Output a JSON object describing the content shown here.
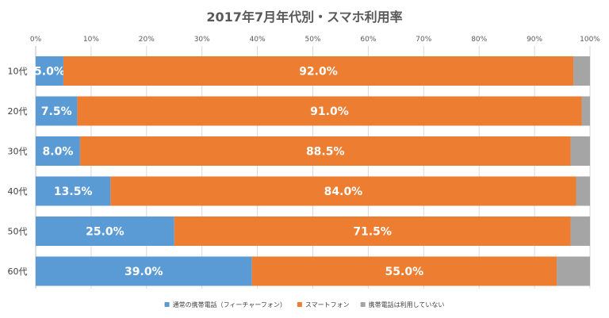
{
  "chart_data": {
    "type": "bar",
    "orientation": "horizontal",
    "stacked": true,
    "title": "2017年7月年代別・スマホ利用率",
    "categories": [
      "10代",
      "20代",
      "30代",
      "40代",
      "50代",
      "60代"
    ],
    "x_ticks": [
      "0%",
      "10%",
      "20%",
      "30%",
      "40%",
      "50%",
      "60%",
      "70%",
      "80%",
      "90%",
      "100%"
    ],
    "xlim": [
      0,
      100
    ],
    "grid": true,
    "legend_position": "bottom",
    "series": [
      {
        "name": "通常の携帯電話（フィーチャーフォン）",
        "color": "#5b9bd5",
        "values": [
          5.0,
          7.5,
          8.0,
          13.5,
          25.0,
          39.0
        ],
        "labels": [
          "5.0%",
          "7.5%",
          "8.0%",
          "13.5%",
          "25.0%",
          "39.0%"
        ]
      },
      {
        "name": "スマートフォン",
        "color": "#ed7d31",
        "values": [
          92.0,
          91.0,
          88.5,
          84.0,
          71.5,
          55.0
        ],
        "labels": [
          "92.0%",
          "91.0%",
          "88.5%",
          "84.0%",
          "71.5%",
          "55.0%"
        ]
      },
      {
        "name": "携帯電話は利用していない",
        "color": "#a5a5a5",
        "values": [
          3.0,
          1.5,
          3.5,
          2.5,
          3.5,
          6.0
        ],
        "labels": [
          "",
          "",
          "",
          "",
          "",
          ""
        ]
      }
    ]
  }
}
